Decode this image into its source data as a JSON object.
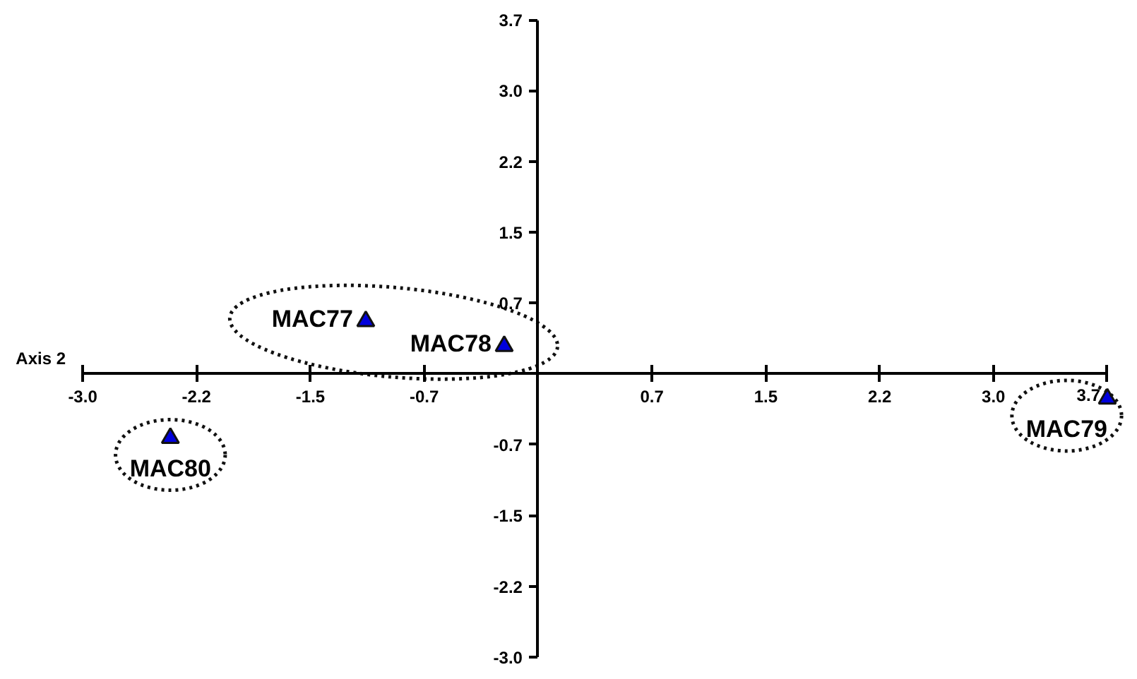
{
  "chart_data": {
    "type": "scatter",
    "xlabel": "Axis 2",
    "xlim": [
      -2.96,
      3.7
    ],
    "ylim": [
      -2.96,
      3.7
    ],
    "xticks": [
      {
        "value": -2.96,
        "label": "-3.0"
      },
      {
        "value": -2.22,
        "label": "-2.2"
      },
      {
        "value": -1.48,
        "label": "-1.5"
      },
      {
        "value": -0.74,
        "label": "-0.7"
      },
      {
        "value": 0.74,
        "label": "0.7"
      },
      {
        "value": 1.48,
        "label": "1.5"
      },
      {
        "value": 2.22,
        "label": "2.2"
      },
      {
        "value": 2.96,
        "label": "3.0"
      },
      3.7
    ],
    "yticks": [
      {
        "value": -2.96,
        "label": "-3.0"
      },
      {
        "value": -2.22,
        "label": "-2.2"
      },
      {
        "value": -1.48,
        "label": "-1.5"
      },
      {
        "value": -0.74,
        "label": "-0.7"
      },
      {
        "value": 0.74,
        "label": "0.7"
      },
      {
        "value": 1.48,
        "label": "1.5"
      },
      {
        "value": 2.22,
        "label": "2.2"
      },
      {
        "value": 2.96,
        "label": "3.0"
      },
      3.7
    ],
    "marker": "triangle",
    "grid": false,
    "series": [
      {
        "color": "#0000dd",
        "x": [
          -1.12,
          -0.22
        ],
        "values": [
          0.55,
          0.29
        ],
        "value_labels": [
          "MAC77",
          "MAC78"
        ]
      },
      {
        "color": "#0000dd",
        "x": [
          -2.39
        ],
        "values": [
          -0.67
        ],
        "value_labels": [
          "MAC80"
        ]
      },
      {
        "color": "#0000dd",
        "x": [
          3.7
        ],
        "values": [
          -0.26
        ],
        "value_labels": [
          "MAC79"
        ]
      }
    ]
  }
}
